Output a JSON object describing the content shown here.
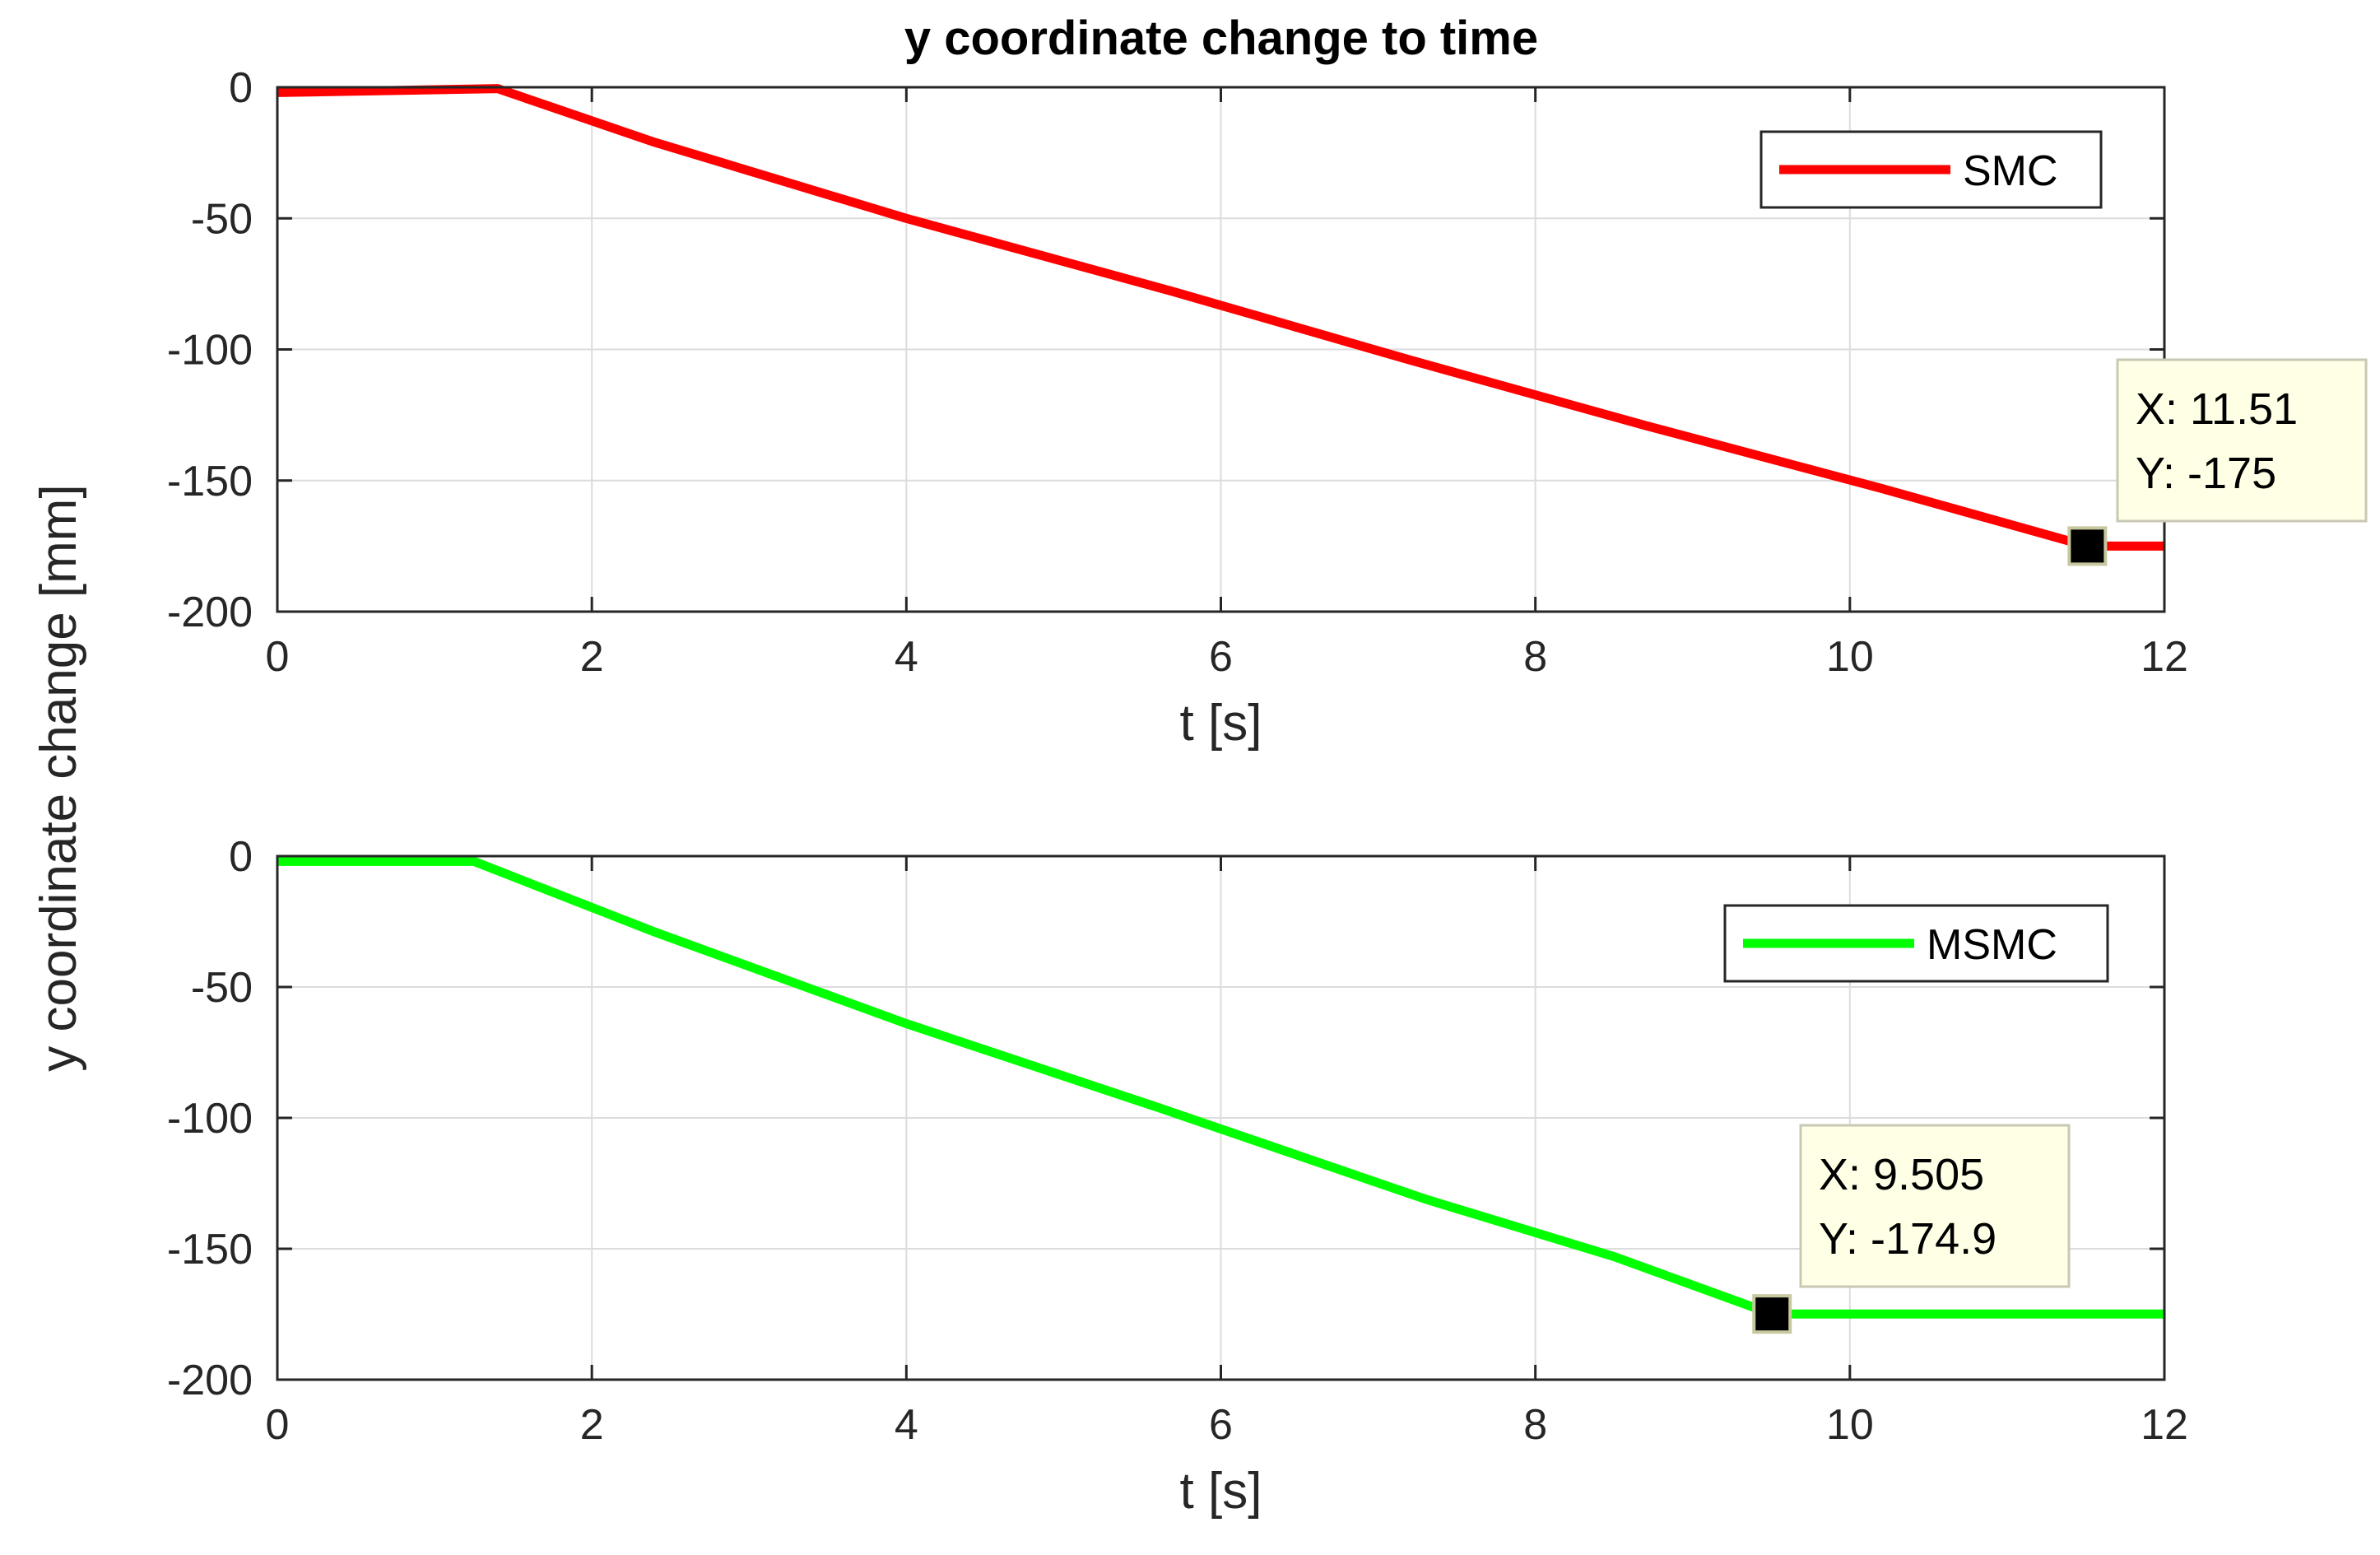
{
  "figure": {
    "title": "y coordinate change to time",
    "shared_ylabel": "y coordinate change [mm]"
  },
  "chart_data": [
    {
      "type": "line",
      "xlabel": "t [s]",
      "ylabel": "y coordinate change [mm]",
      "xlim": [
        0,
        12
      ],
      "ylim": [
        -200,
        0
      ],
      "xticks": [
        0,
        2,
        4,
        6,
        8,
        10,
        12
      ],
      "yticks": [
        0,
        -50,
        -100,
        -150,
        -200
      ],
      "xtick_labels": [
        "0",
        "2",
        "4",
        "6",
        "8",
        "10",
        "12"
      ],
      "ytick_labels": [
        "0",
        "-50",
        "-100",
        "-150",
        "-200"
      ],
      "grid": true,
      "legend_position": "top-right",
      "series": [
        {
          "name": "SMC",
          "color": "#ff0000",
          "x": [
            0,
            1.4,
            2.4,
            4.0,
            5.7,
            7.2,
            8.7,
            10.2,
            11.51,
            12.0
          ],
          "y": [
            -2,
            -0.5,
            -21,
            -50,
            -78,
            -104,
            -129,
            -153,
            -175,
            -175
          ]
        }
      ],
      "data_tip": {
        "x_label": "X: 11.51",
        "y_label": "Y: -175",
        "x": 11.51,
        "y": -175
      }
    },
    {
      "type": "line",
      "xlabel": "t [s]",
      "ylabel": "y coordinate change [mm]",
      "xlim": [
        0,
        12
      ],
      "ylim": [
        -200,
        0
      ],
      "xticks": [
        0,
        2,
        4,
        6,
        8,
        10,
        12
      ],
      "yticks": [
        0,
        -50,
        -100,
        -150,
        -200
      ],
      "xtick_labels": [
        "0",
        "2",
        "4",
        "6",
        "8",
        "10",
        "12"
      ],
      "ytick_labels": [
        "0",
        "-50",
        "-100",
        "-150",
        "-200"
      ],
      "grid": true,
      "legend_position": "top-right",
      "series": [
        {
          "name": "MSMC",
          "color": "#00ff00",
          "x": [
            0,
            1.25,
            2.4,
            4.0,
            5.6,
            7.3,
            8.5,
            9.505,
            12.0
          ],
          "y": [
            -2,
            -2,
            -29,
            -64,
            -96,
            -131,
            -153,
            -174.9,
            -174.9
          ]
        }
      ],
      "data_tip": {
        "x_label": "X: 9.505",
        "y_label": "Y: -174.9",
        "x": 9.505,
        "y": -174.9
      }
    }
  ]
}
